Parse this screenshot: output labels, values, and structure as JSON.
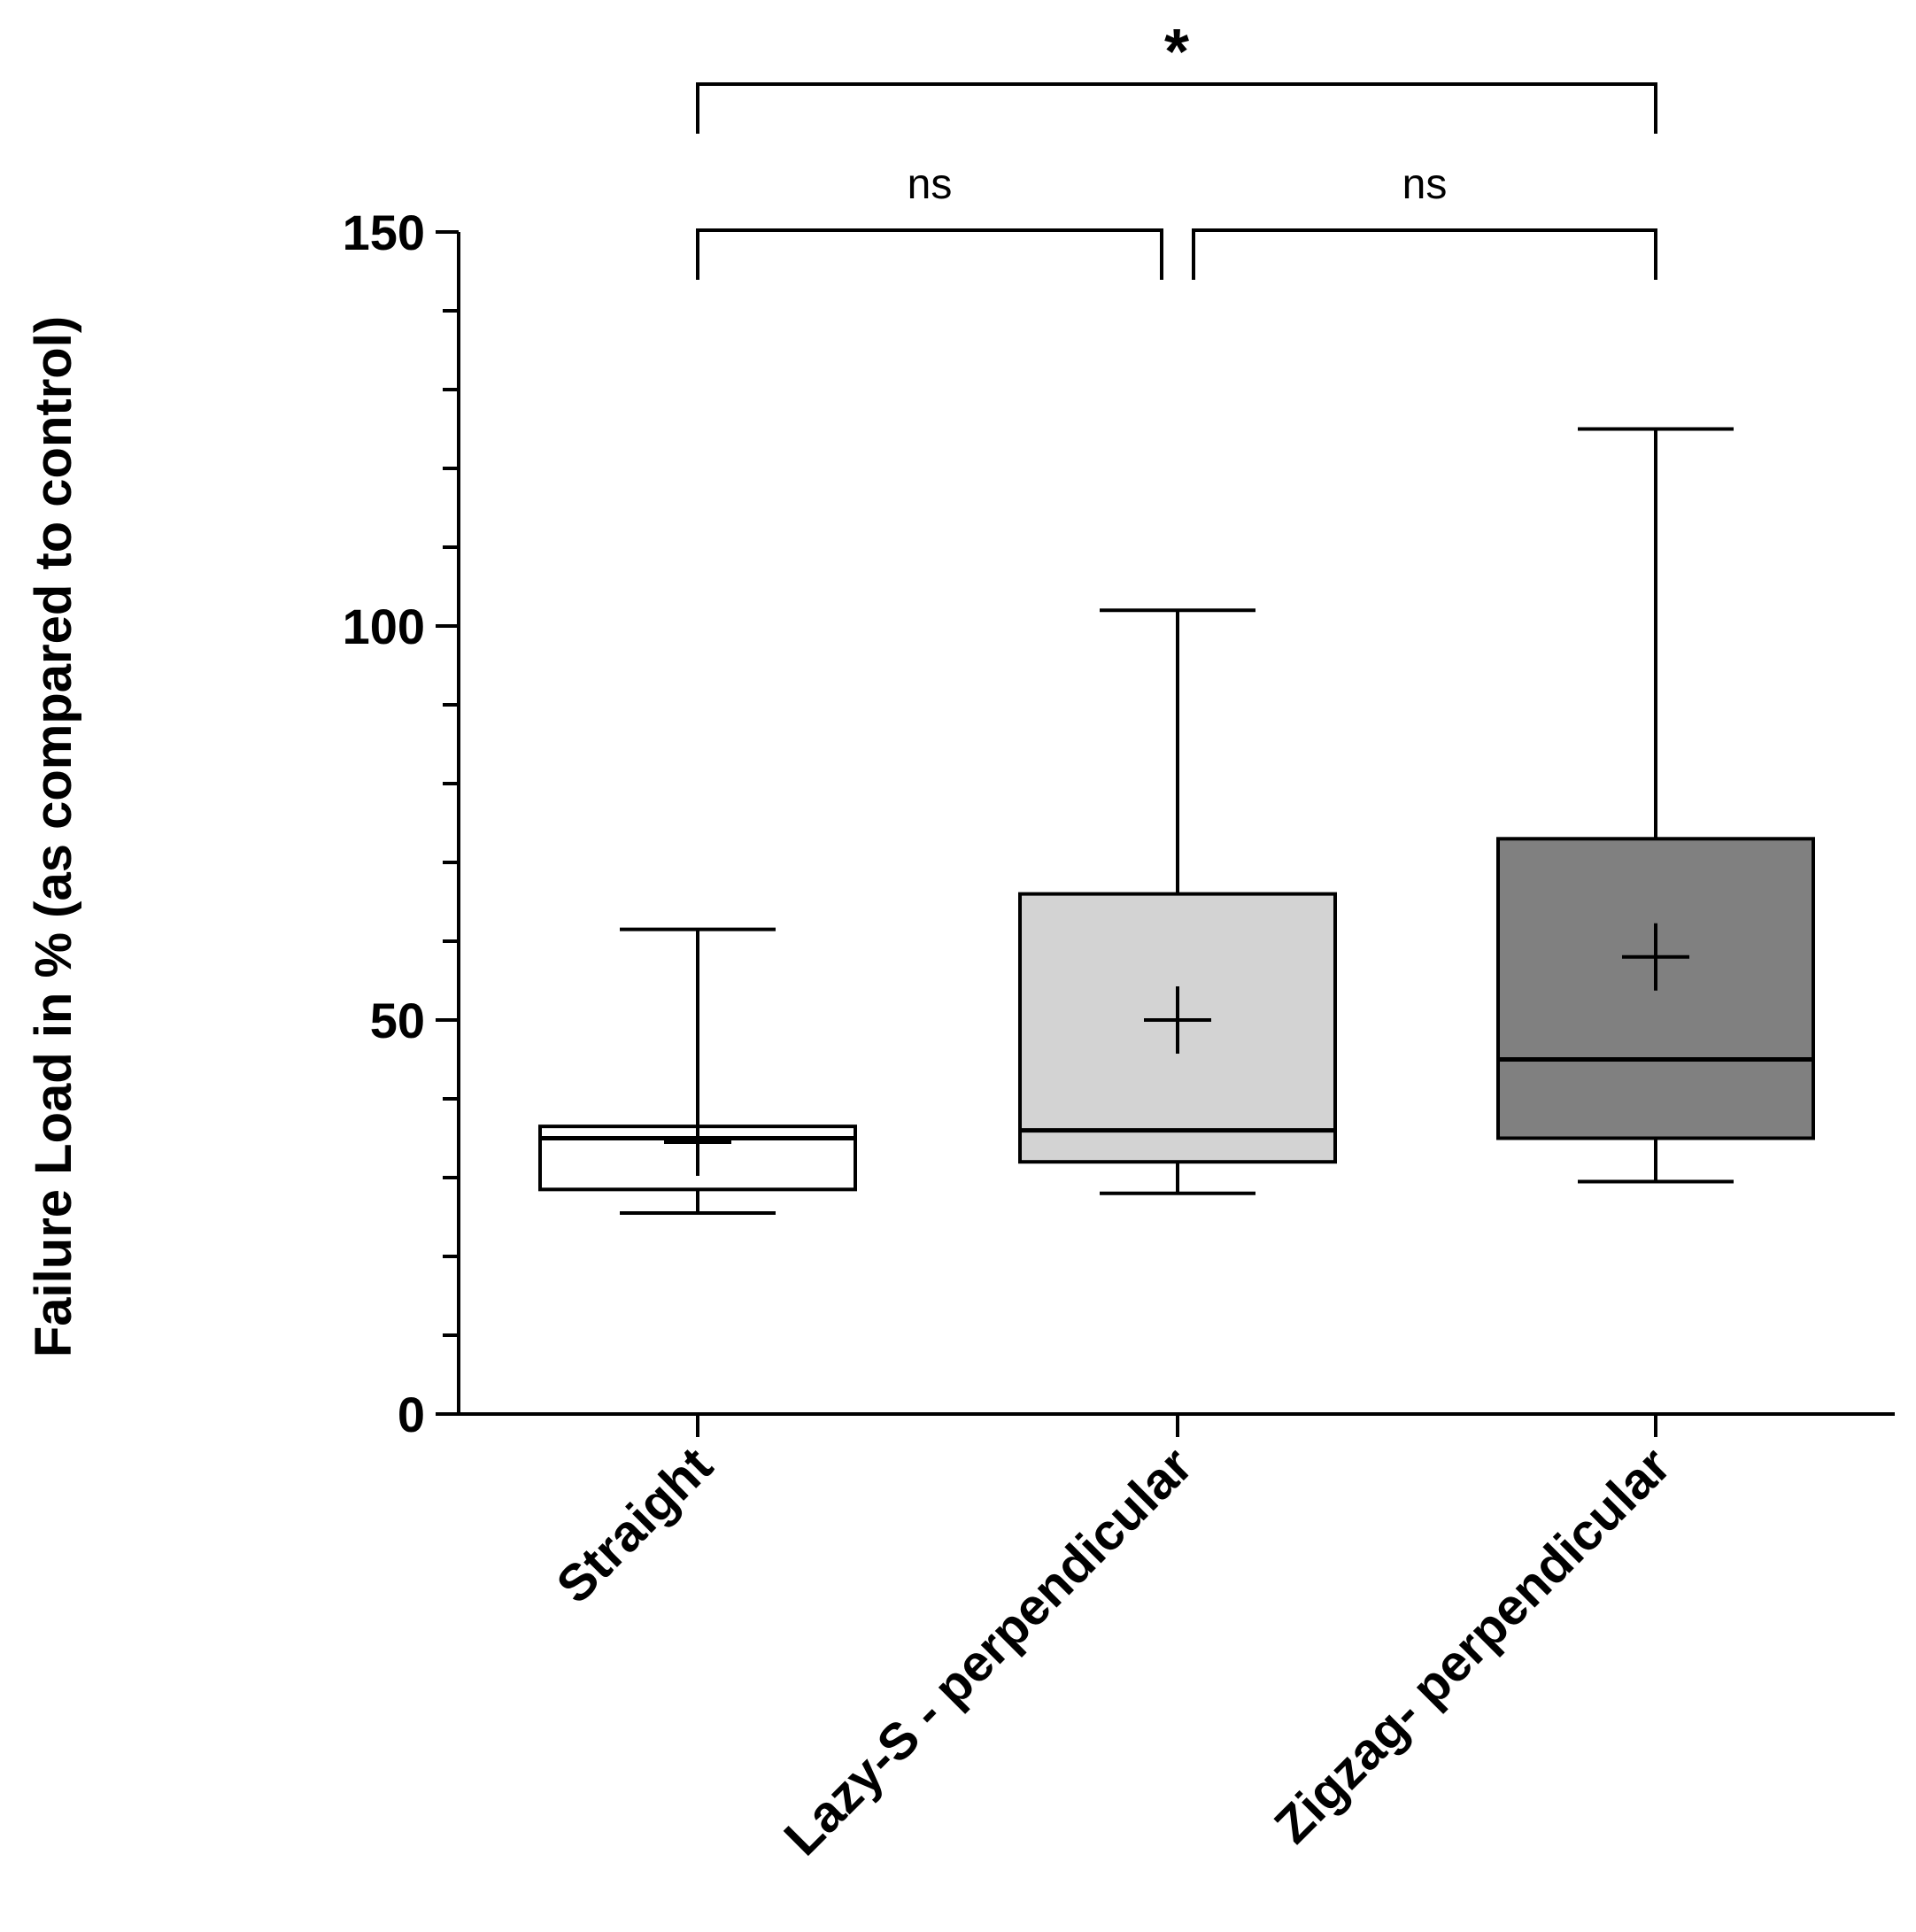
{
  "chart_data": {
    "type": "box",
    "ylabel": "Failure Load in % (as compared to control)",
    "xlabel": "",
    "ylim": [
      0,
      150
    ],
    "yticks_major": [
      0,
      50,
      100,
      150
    ],
    "yticks_major_labels": [
      "0",
      "50",
      "100",
      "150"
    ],
    "ytick_minor_step": 10,
    "categories": [
      "Straight",
      "Lazy-S - perpendicular",
      "Zigzag- perpendicular"
    ],
    "boxes": [
      {
        "name": "Straight",
        "min": 25.5,
        "q1": 28.5,
        "median": 35,
        "q3": 36.5,
        "max": 61.5,
        "mean": 34.5,
        "fill": "#ffffff"
      },
      {
        "name": "Lazy-S - perpendicular",
        "min": 28,
        "q1": 32,
        "median": 36,
        "q3": 66,
        "max": 102,
        "mean": 50,
        "fill": "#d3d3d3"
      },
      {
        "name": "Zigzag- perpendicular",
        "min": 29.5,
        "q1": 35,
        "median": 45,
        "q3": 73,
        "max": 125,
        "mean": 58,
        "fill": "#808080"
      }
    ],
    "significance": [
      {
        "from": 0,
        "to": 1,
        "label": "ns",
        "level": 1
      },
      {
        "from": 1,
        "to": 2,
        "label": "ns",
        "level": 1
      },
      {
        "from": 0,
        "to": 2,
        "label": "*",
        "level": 2
      }
    ]
  }
}
